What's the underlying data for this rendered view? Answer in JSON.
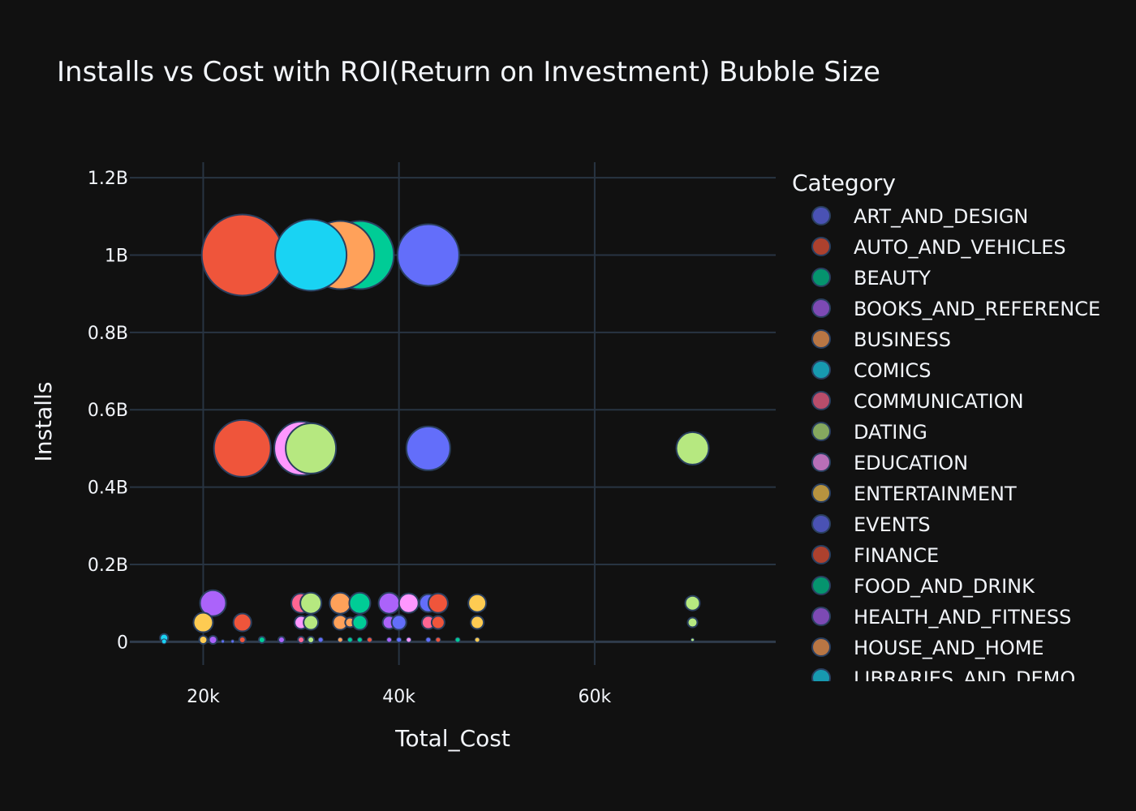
{
  "chart_data": {
    "type": "scatter",
    "title": "Installs vs Cost with ROI(Return on Investment) Bubble Size",
    "xlabel": "Total_Cost",
    "ylabel": "Installs",
    "xlim": [
      12500,
      78500
    ],
    "ylim": [
      -60000000,
      1240000000
    ],
    "x_ticks": [
      {
        "value": 20000,
        "label": "20k"
      },
      {
        "value": 40000,
        "label": "40k"
      },
      {
        "value": 60000,
        "label": "60k"
      }
    ],
    "y_ticks": [
      {
        "value": 0,
        "label": "0"
      },
      {
        "value": 200000000,
        "label": "0.2B"
      },
      {
        "value": 400000000,
        "label": "0.4B"
      },
      {
        "value": 600000000,
        "label": "0.6B"
      },
      {
        "value": 800000000,
        "label": "0.8B"
      },
      {
        "value": 1000000000,
        "label": "1B"
      },
      {
        "value": 1200000000,
        "label": "1.2B"
      }
    ],
    "grid": true,
    "legend_title": "Category",
    "legend_position": "right",
    "legend": [
      {
        "name": "ART_AND_DESIGN",
        "color": "#636efa"
      },
      {
        "name": "AUTO_AND_VEHICLES",
        "color": "#ef553b"
      },
      {
        "name": "BEAUTY",
        "color": "#00cc96"
      },
      {
        "name": "BOOKS_AND_REFERENCE",
        "color": "#ab63fa"
      },
      {
        "name": "BUSINESS",
        "color": "#ffa15a"
      },
      {
        "name": "COMICS",
        "color": "#19d3f3"
      },
      {
        "name": "COMMUNICATION",
        "color": "#ff6692"
      },
      {
        "name": "DATING",
        "color": "#b6e880"
      },
      {
        "name": "EDUCATION",
        "color": "#ff97ff"
      },
      {
        "name": "ENTERTAINMENT",
        "color": "#fecb52"
      },
      {
        "name": "EVENTS",
        "color": "#636efa"
      },
      {
        "name": "FINANCE",
        "color": "#ef553b"
      },
      {
        "name": "FOOD_AND_DRINK",
        "color": "#00cc96"
      },
      {
        "name": "HEALTH_AND_FITNESS",
        "color": "#ab63fa"
      },
      {
        "name": "HOUSE_AND_HOME",
        "color": "#ffa15a"
      },
      {
        "name": "LIBRARIES_AND_DEMO",
        "color": "#19d3f3"
      }
    ],
    "points": [
      {
        "x": 36000,
        "y": 1000000000,
        "size": 42,
        "color": "#00cc96"
      },
      {
        "x": 34000,
        "y": 1000000000,
        "size": 42,
        "color": "#ffa15a"
      },
      {
        "x": 24000,
        "y": 1000000000,
        "size": 50,
        "color": "#ef553b"
      },
      {
        "x": 31000,
        "y": 1000000000,
        "size": 44,
        "color": "#19d3f3"
      },
      {
        "x": 43000,
        "y": 1000000000,
        "size": 38,
        "color": "#636efa"
      },
      {
        "x": 24000,
        "y": 500000000,
        "size": 35,
        "color": "#ef553b"
      },
      {
        "x": 30000,
        "y": 500000000,
        "size": 33,
        "color": "#ff97ff"
      },
      {
        "x": 31000,
        "y": 500000000,
        "size": 31,
        "color": "#b6e880"
      },
      {
        "x": 43000,
        "y": 500000000,
        "size": 27,
        "color": "#636efa"
      },
      {
        "x": 70000,
        "y": 500000000,
        "size": 20,
        "color": "#b6e880"
      },
      {
        "x": 21000,
        "y": 100000000,
        "size": 16,
        "color": "#ab63fa"
      },
      {
        "x": 30000,
        "y": 100000000,
        "size": 12,
        "color": "#ff6692"
      },
      {
        "x": 31000,
        "y": 100000000,
        "size": 13,
        "color": "#b6e880"
      },
      {
        "x": 34000,
        "y": 100000000,
        "size": 13,
        "color": "#ffa15a"
      },
      {
        "x": 36000,
        "y": 100000000,
        "size": 13,
        "color": "#00cc96"
      },
      {
        "x": 39000,
        "y": 100000000,
        "size": 13,
        "color": "#ab63fa"
      },
      {
        "x": 41000,
        "y": 100000000,
        "size": 12,
        "color": "#ff97ff"
      },
      {
        "x": 43000,
        "y": 100000000,
        "size": 11,
        "color": "#636efa"
      },
      {
        "x": 44000,
        "y": 100000000,
        "size": 12,
        "color": "#ef553b"
      },
      {
        "x": 48000,
        "y": 100000000,
        "size": 11,
        "color": "#fecb52"
      },
      {
        "x": 70000,
        "y": 100000000,
        "size": 9,
        "color": "#b6e880"
      },
      {
        "x": 20000,
        "y": 50000000,
        "size": 12,
        "color": "#fecb52"
      },
      {
        "x": 24000,
        "y": 50000000,
        "size": 11,
        "color": "#ef553b"
      },
      {
        "x": 30000,
        "y": 50000000,
        "size": 8,
        "color": "#ff97ff"
      },
      {
        "x": 31000,
        "y": 50000000,
        "size": 9,
        "color": "#b6e880"
      },
      {
        "x": 34000,
        "y": 50000000,
        "size": 9,
        "color": "#ffa15a"
      },
      {
        "x": 35000,
        "y": 50000000,
        "size": 6,
        "color": "#ffa15a"
      },
      {
        "x": 36000,
        "y": 50000000,
        "size": 9,
        "color": "#00cc96"
      },
      {
        "x": 39000,
        "y": 50000000,
        "size": 8,
        "color": "#ab63fa"
      },
      {
        "x": 40000,
        "y": 50000000,
        "size": 9,
        "color": "#636efa"
      },
      {
        "x": 43000,
        "y": 50000000,
        "size": 8,
        "color": "#ff6692"
      },
      {
        "x": 44000,
        "y": 50000000,
        "size": 8,
        "color": "#ef553b"
      },
      {
        "x": 48000,
        "y": 50000000,
        "size": 8,
        "color": "#fecb52"
      },
      {
        "x": 70000,
        "y": 50000000,
        "size": 6,
        "color": "#b6e880"
      },
      {
        "x": 16000,
        "y": 10000000,
        "size": 5,
        "color": "#19d3f3"
      },
      {
        "x": 20000,
        "y": 5000000,
        "size": 5,
        "color": "#fecb52"
      },
      {
        "x": 21000,
        "y": 5000000,
        "size": 5,
        "color": "#ab63fa"
      },
      {
        "x": 24000,
        "y": 5000000,
        "size": 4,
        "color": "#ef553b"
      },
      {
        "x": 26000,
        "y": 5000000,
        "size": 4,
        "color": "#00cc96"
      },
      {
        "x": 28000,
        "y": 5000000,
        "size": 4,
        "color": "#ab63fa"
      },
      {
        "x": 30000,
        "y": 5000000,
        "size": 4,
        "color": "#ff6692"
      },
      {
        "x": 31000,
        "y": 5000000,
        "size": 4,
        "color": "#b6e880"
      },
      {
        "x": 32000,
        "y": 5000000,
        "size": 3,
        "color": "#636efa"
      },
      {
        "x": 34000,
        "y": 5000000,
        "size": 3,
        "color": "#ffa15a"
      },
      {
        "x": 35000,
        "y": 5000000,
        "size": 3,
        "color": "#00cc96"
      },
      {
        "x": 36000,
        "y": 5000000,
        "size": 3,
        "color": "#00cc96"
      },
      {
        "x": 37000,
        "y": 5000000,
        "size": 3,
        "color": "#ef553b"
      },
      {
        "x": 39000,
        "y": 5000000,
        "size": 3,
        "color": "#ab63fa"
      },
      {
        "x": 40000,
        "y": 5000000,
        "size": 3,
        "color": "#636efa"
      },
      {
        "x": 41000,
        "y": 5000000,
        "size": 3,
        "color": "#ff97ff"
      },
      {
        "x": 43000,
        "y": 5000000,
        "size": 3,
        "color": "#636efa"
      },
      {
        "x": 44000,
        "y": 5000000,
        "size": 3,
        "color": "#ef553b"
      },
      {
        "x": 46000,
        "y": 5000000,
        "size": 3,
        "color": "#00cc96"
      },
      {
        "x": 48000,
        "y": 5000000,
        "size": 3,
        "color": "#fecb52"
      },
      {
        "x": 70000,
        "y": 5000000,
        "size": 2,
        "color": "#b6e880"
      },
      {
        "x": 22000,
        "y": 1000000,
        "size": 2,
        "color": "#636efa"
      },
      {
        "x": 23000,
        "y": 1000000,
        "size": 2,
        "color": "#636efa"
      },
      {
        "x": 16000,
        "y": 1000000,
        "size": 3,
        "color": "#19d3f3"
      }
    ]
  }
}
